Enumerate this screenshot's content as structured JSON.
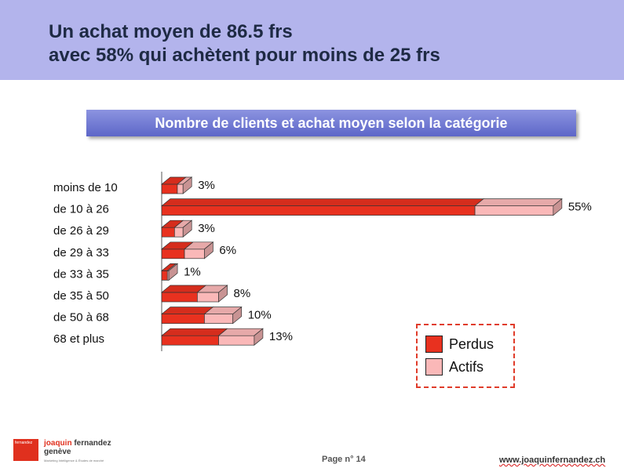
{
  "header": {
    "title_line1": "Un achat moyen de 86.5 frs",
    "title_line2": "avec 58% qui achètent pour moins de 25 frs",
    "background": "#b3b4ec"
  },
  "subtitle": "Nombre de clients et achat moyen selon la catégorie",
  "chart_data": {
    "type": "bar",
    "orientation": "horizontal",
    "stacked": true,
    "style": "3d",
    "title": "Nombre de clients et achat moyen selon la catégorie",
    "categories": [
      "moins de 10",
      "de 10 à 26",
      "de 26 à 29",
      "de 29 à 33",
      "de 33 à 35",
      "de 35 à 50",
      "de 50 à 68",
      "68 et plus"
    ],
    "series": [
      {
        "name": "Perdus",
        "values": [
          2.2,
          44,
          1.8,
          3.2,
          0.8,
          5,
          6,
          8
        ],
        "color": "#e8311f"
      },
      {
        "name": "Actifs",
        "values": [
          0.8,
          11,
          1.2,
          2.8,
          0.2,
          3,
          4,
          5
        ],
        "color": "#fab8b8"
      }
    ],
    "data_labels": [
      "3%",
      "55%",
      "3%",
      "6%",
      "1%",
      "8%",
      "10%",
      "13%"
    ],
    "xlim": [
      0,
      55
    ],
    "grid": false,
    "legend_position": "bottom-right"
  },
  "legend": {
    "items": [
      {
        "label": "Perdus",
        "color": "#e8311f"
      },
      {
        "label": "Actifs",
        "color": "#fab8b8"
      }
    ]
  },
  "footer": {
    "logo_text": "fernandez",
    "brand_first": "joaquin",
    "brand_rest": " fernandez",
    "brand_line2": "genève",
    "tagline": "Marketing Intelligence & Études de marché",
    "page": "Page n° 14",
    "website": "www.joaquinfernandez.ch"
  }
}
